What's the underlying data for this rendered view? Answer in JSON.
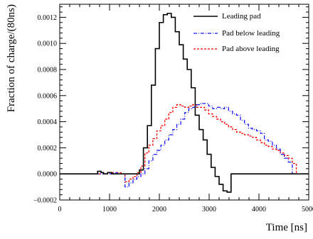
{
  "chart_data": {
    "type": "line",
    "title": "",
    "xlabel": "Time [ns]",
    "ylabel": "Fraction of charge/(80ns)",
    "xlim": [
      0,
      5000
    ],
    "ylim": [
      -0.0002,
      0.0013
    ],
    "grid": false,
    "legend_placement": "top-right",
    "x_ticks": [
      0,
      1000,
      2000,
      3000,
      4000,
      5000
    ],
    "y_ticks": [
      -0.0002,
      0.0,
      0.0002,
      0.0004,
      0.0006,
      0.0008,
      0.001,
      0.0012
    ],
    "x_tick_labels": [
      "0",
      "1000",
      "2000",
      "3000",
      "4000",
      "5000"
    ],
    "y_tick_labels": [
      "−0.0002",
      "0.0000",
      "0.0002",
      "0.0004",
      "0.0006",
      "0.0008",
      "0.0010",
      "0.0012"
    ],
    "series": [
      {
        "name": "Leading pad",
        "color": "#000000",
        "style": "solid",
        "x": [
          0,
          760,
          830,
          880,
          960,
          1040,
          1120,
          1200,
          1280,
          1360,
          1440,
          1520,
          1600,
          1680,
          1760,
          1840,
          1920,
          2000,
          2080,
          2160,
          2240,
          2320,
          2400,
          2480,
          2560,
          2640,
          2720,
          2800,
          2880,
          2960,
          3040,
          3120,
          3200,
          3280,
          3360,
          3440,
          5000
        ],
        "y": [
          0.0,
          2e-05,
          1e-05,
          0.0,
          1e-05,
          0.0,
          0.0,
          0.0,
          0.0,
          0.0,
          0.0,
          0.0,
          3e-05,
          0.0002,
          0.00037,
          0.00068,
          0.00096,
          0.00116,
          0.00122,
          0.00123,
          0.0012,
          0.00109,
          0.00099,
          0.00088,
          0.0008,
          0.00066,
          0.00045,
          0.00034,
          0.00026,
          0.00015,
          5e-05,
          -2e-05,
          -8e-05,
          -0.00013,
          -0.00014,
          0.0,
          0.0
        ]
      },
      {
        "name": "Pad below leading",
        "color": "#1a1aff",
        "style": "dash-dot",
        "x": [
          0,
          1060,
          1150,
          1230,
          1310,
          1390,
          1470,
          1550,
          1630,
          1710,
          1790,
          1870,
          1950,
          2030,
          2110,
          2190,
          2270,
          2350,
          2430,
          2510,
          2590,
          2670,
          2750,
          2830,
          2910,
          2990,
          3070,
          3150,
          3230,
          3310,
          3390,
          3470,
          3550,
          3630,
          3710,
          3790,
          3870,
          3950,
          4030,
          4110,
          4190,
          4270,
          4350,
          4430,
          4510,
          4590,
          4670,
          4750,
          5000
        ],
        "y": [
          0.0,
          1e-05,
          0.0,
          0.0,
          -0.0001,
          -7e-05,
          -4e-05,
          -2e-05,
          0.0,
          4e-05,
          0.0001,
          0.00015,
          0.00018,
          0.00022,
          0.00026,
          0.0003,
          0.00034,
          0.00038,
          0.00042,
          0.00047,
          0.0005,
          0.00051,
          0.00053,
          0.00054,
          0.00054,
          0.00052,
          0.0005,
          0.00051,
          0.0005,
          0.00051,
          0.00048,
          0.00046,
          0.00045,
          0.00041,
          0.00038,
          0.00035,
          0.00034,
          0.00033,
          0.00031,
          0.00026,
          0.00025,
          0.00022,
          0.00019,
          0.00015,
          0.00012,
          9e-05,
          0.0,
          0.0,
          0.0
        ]
      },
      {
        "name": "Pad above leading",
        "color": "#ff0000",
        "style": "dashed",
        "x": [
          0,
          990,
          1070,
          1150,
          1230,
          1310,
          1390,
          1470,
          1550,
          1630,
          1710,
          1790,
          1870,
          1950,
          2030,
          2110,
          2190,
          2270,
          2350,
          2430,
          2510,
          2590,
          2670,
          2750,
          2830,
          2910,
          2990,
          3070,
          3150,
          3230,
          3310,
          3390,
          3470,
          3550,
          3630,
          3710,
          3790,
          3870,
          3950,
          4030,
          4110,
          4190,
          4270,
          4350,
          4430,
          4510,
          4590,
          4670,
          4750,
          5000
        ],
        "y": [
          0.0,
          1e-05,
          0.0,
          1e-05,
          0.0,
          -6e-05,
          -4e-05,
          -2e-05,
          1e-05,
          6e-05,
          0.00016,
          0.00022,
          0.00027,
          0.00033,
          0.00037,
          0.00042,
          0.00047,
          0.00051,
          0.00053,
          0.00052,
          0.00051,
          0.00052,
          0.00053,
          0.00051,
          0.00051,
          0.00049,
          0.00046,
          0.00044,
          0.00042,
          0.0004,
          0.00038,
          0.00036,
          0.00034,
          0.00032,
          0.00031,
          0.0003,
          0.00029,
          0.00028,
          0.00026,
          0.00024,
          0.00022,
          0.00021,
          0.00019,
          0.00018,
          0.00016,
          0.00014,
          0.00012,
          8e-05,
          0.0,
          0.0
        ]
      }
    ]
  }
}
